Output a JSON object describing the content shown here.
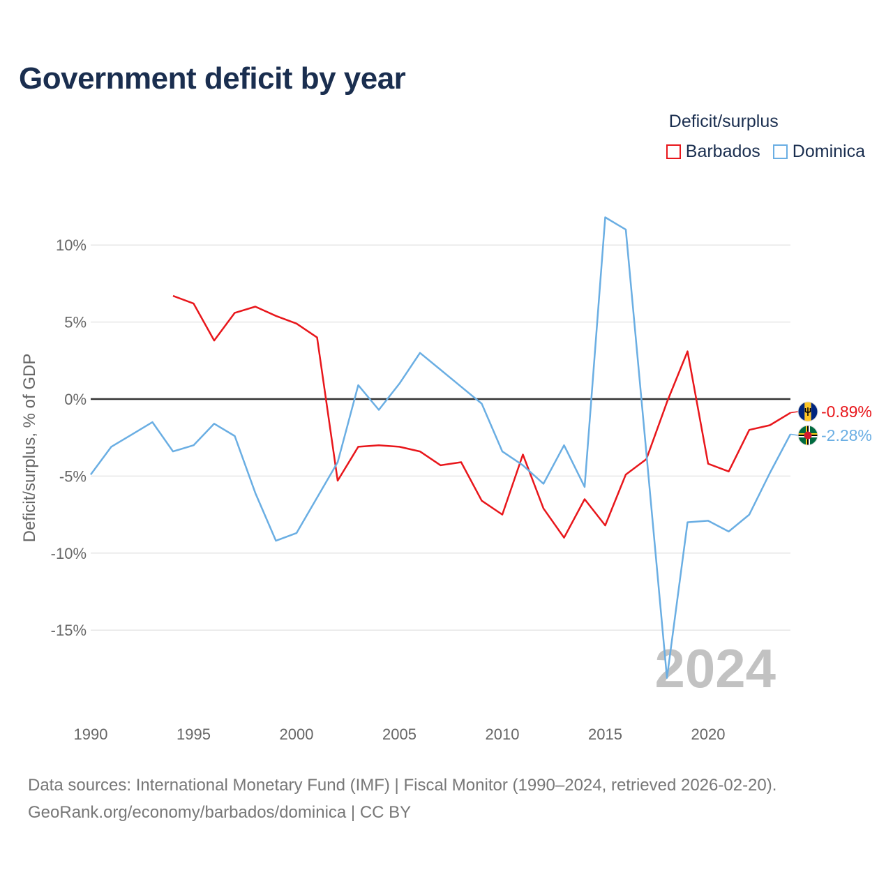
{
  "title": "Government deficit by year",
  "legend": {
    "title": "Deficit/surplus",
    "items": [
      {
        "label": "Barbados",
        "color": "#e8161b"
      },
      {
        "label": "Dominica",
        "color": "#6aaee3"
      }
    ]
  },
  "chart_data": {
    "type": "line",
    "title": "Government deficit by year",
    "xlabel": "",
    "ylabel": "Deficit/surplus, % of GDP",
    "xlim": [
      1990,
      2024
    ],
    "ylim": [
      -20,
      14
    ],
    "x_ticks": [
      1990,
      1995,
      2000,
      2005,
      2010,
      2015,
      2020
    ],
    "y_ticks": [
      {
        "value": 10,
        "label": "10%"
      },
      {
        "value": 5,
        "label": "5%"
      },
      {
        "value": 0,
        "label": "0%"
      },
      {
        "value": -5,
        "label": "-5%"
      },
      {
        "value": -10,
        "label": "-10%"
      },
      {
        "value": -15,
        "label": "-15%"
      }
    ],
    "zero_line": true,
    "grid": true,
    "year_watermark": "2024",
    "series": [
      {
        "name": "Barbados",
        "color": "#e8161b",
        "end_label": "-0.89%",
        "flag_icon": "barbados-flag-icon",
        "x": [
          1994,
          1995,
          1996,
          1997,
          1998,
          1999,
          2000,
          2001,
          2002,
          2003,
          2004,
          2005,
          2006,
          2007,
          2008,
          2009,
          2010,
          2011,
          2012,
          2013,
          2014,
          2015,
          2016,
          2017,
          2018,
          2019,
          2020,
          2021,
          2022,
          2023,
          2024
        ],
        "values": [
          6.7,
          6.2,
          3.8,
          5.6,
          6.0,
          5.4,
          4.9,
          4.0,
          -5.3,
          -3.1,
          -3.0,
          -3.1,
          -3.4,
          -4.3,
          -4.1,
          -6.6,
          -7.5,
          -3.6,
          -7.1,
          -9.0,
          -6.5,
          -8.2,
          -4.9,
          -3.9,
          -0.2,
          3.1,
          -4.2,
          -4.7,
          -2.0,
          -1.7,
          -0.89
        ]
      },
      {
        "name": "Dominica",
        "color": "#6aaee3",
        "end_label": "-2.28%",
        "flag_icon": "dominica-flag-icon",
        "x": [
          1990,
          1991,
          1992,
          1993,
          1994,
          1995,
          1996,
          1997,
          1998,
          1999,
          2000,
          2001,
          2002,
          2003,
          2004,
          2005,
          2006,
          2007,
          2008,
          2009,
          2010,
          2011,
          2012,
          2013,
          2014,
          2015,
          2016,
          2017,
          2018,
          2019,
          2020,
          2021,
          2022,
          2023,
          2024
        ],
        "values": [
          -4.9,
          -3.1,
          -2.3,
          -1.5,
          -3.4,
          -3.0,
          -1.6,
          -2.4,
          -6.1,
          -9.2,
          -8.7,
          -6.4,
          -4.1,
          0.9,
          -0.7,
          1.0,
          3.0,
          1.9,
          0.8,
          -0.3,
          -3.4,
          -4.3,
          -5.5,
          -3.0,
          -5.7,
          11.8,
          11.0,
          -3.5,
          -18.1,
          -8.0,
          -7.9,
          -8.6,
          -7.5,
          -4.8,
          -2.28
        ]
      }
    ]
  },
  "footer": {
    "line1": "Data sources: International Monetary Fund (IMF) | Fiscal Monitor (1990–2024, retrieved 2026-02-20).",
    "line2": "GeoRank.org/economy/barbados/dominica | CC BY"
  }
}
